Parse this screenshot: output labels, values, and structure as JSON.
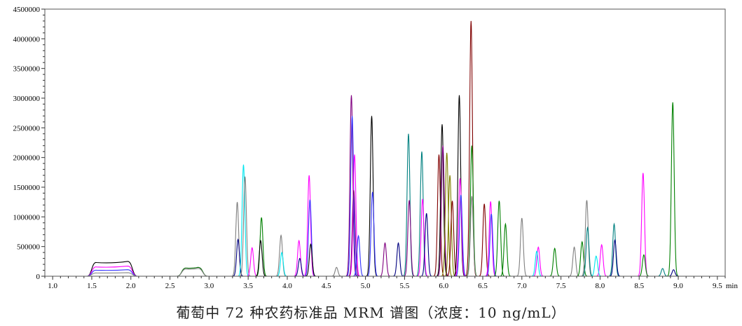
{
  "chart_data": {
    "type": "line",
    "title": "",
    "xlabel": "",
    "ylabel": "",
    "x_unit": "min",
    "xlim": [
      0.9,
      9.6
    ],
    "ylim": [
      0,
      4500000
    ],
    "x_ticks": [
      "1.0",
      "1.5",
      "2.0",
      "2.5",
      "3.0",
      "3.5",
      "4.0",
      "4.5",
      "5.0",
      "5.5",
      "6.0",
      "6.5",
      "7.0",
      "7.5",
      "8.0",
      "8.5",
      "9.0",
      "9.5"
    ],
    "y_ticks": [
      "0",
      "500000",
      "1000000",
      "1500000",
      "2000000",
      "2500000",
      "3000000",
      "3500000",
      "4000000",
      "4500000"
    ],
    "grid": false,
    "legend": "none",
    "plateaus": [
      {
        "start": 1.5,
        "end": 2.02,
        "color": "#000000",
        "height": 250000
      },
      {
        "start": 1.5,
        "end": 2.02,
        "color": "#ff00ff",
        "height": 170000
      },
      {
        "start": 1.5,
        "end": 2.02,
        "color": "#3333ff",
        "height": 110000
      },
      {
        "start": 1.5,
        "end": 2.02,
        "color": "#888888",
        "height": 60000
      },
      {
        "start": 2.65,
        "end": 2.92,
        "color": "#006600",
        "height": 150000
      },
      {
        "start": 2.65,
        "end": 2.92,
        "color": "#888888",
        "height": 130000
      }
    ],
    "peaks": [
      {
        "x": 3.36,
        "y": 1250000,
        "color": "#808080"
      },
      {
        "x": 3.37,
        "y": 620000,
        "color": "#000080"
      },
      {
        "x": 3.44,
        "y": 1880000,
        "color": "#00e5ee"
      },
      {
        "x": 3.46,
        "y": 1680000,
        "color": "#808080"
      },
      {
        "x": 3.55,
        "y": 480000,
        "color": "#ff00ff"
      },
      {
        "x": 3.67,
        "y": 990000,
        "color": "#008000"
      },
      {
        "x": 3.66,
        "y": 600000,
        "color": "#000000"
      },
      {
        "x": 3.92,
        "y": 690000,
        "color": "#808080"
      },
      {
        "x": 3.93,
        "y": 400000,
        "color": "#00e5ee"
      },
      {
        "x": 4.15,
        "y": 600000,
        "color": "#ff00ff"
      },
      {
        "x": 4.16,
        "y": 300000,
        "color": "#000080"
      },
      {
        "x": 4.28,
        "y": 1700000,
        "color": "#ff00ff"
      },
      {
        "x": 4.29,
        "y": 1290000,
        "color": "#3333ff"
      },
      {
        "x": 4.3,
        "y": 540000,
        "color": "#000000"
      },
      {
        "x": 4.63,
        "y": 150000,
        "color": "#808080"
      },
      {
        "x": 4.82,
        "y": 3050000,
        "color": "#800080"
      },
      {
        "x": 4.83,
        "y": 2700000,
        "color": "#3333ff"
      },
      {
        "x": 4.86,
        "y": 2050000,
        "color": "#ff00ff"
      },
      {
        "x": 4.85,
        "y": 1450000,
        "color": "#800080"
      },
      {
        "x": 4.91,
        "y": 680000,
        "color": "#3333ff"
      },
      {
        "x": 5.08,
        "y": 2700000,
        "color": "#000000"
      },
      {
        "x": 5.09,
        "y": 1420000,
        "color": "#3333ff"
      },
      {
        "x": 5.25,
        "y": 560000,
        "color": "#800080"
      },
      {
        "x": 5.42,
        "y": 560000,
        "color": "#000080"
      },
      {
        "x": 5.55,
        "y": 2400000,
        "color": "#008080"
      },
      {
        "x": 5.56,
        "y": 1280000,
        "color": "#800080"
      },
      {
        "x": 5.72,
        "y": 2100000,
        "color": "#008080"
      },
      {
        "x": 5.73,
        "y": 1300000,
        "color": "#ff00ff"
      },
      {
        "x": 5.78,
        "y": 1060000,
        "color": "#000080"
      },
      {
        "x": 5.94,
        "y": 2050000,
        "color": "#800000"
      },
      {
        "x": 5.98,
        "y": 2560000,
        "color": "#000000"
      },
      {
        "x": 5.99,
        "y": 2200000,
        "color": "#800080"
      },
      {
        "x": 6.04,
        "y": 2080000,
        "color": "#808000"
      },
      {
        "x": 6.08,
        "y": 1700000,
        "color": "#808000"
      },
      {
        "x": 6.11,
        "y": 1270000,
        "color": "#800000"
      },
      {
        "x": 6.2,
        "y": 3050000,
        "color": "#000000"
      },
      {
        "x": 6.21,
        "y": 1650000,
        "color": "#ff00ff"
      },
      {
        "x": 6.22,
        "y": 1370000,
        "color": "#3333ff"
      },
      {
        "x": 6.35,
        "y": 4300000,
        "color": "#800000"
      },
      {
        "x": 6.36,
        "y": 2200000,
        "color": "#008000"
      },
      {
        "x": 6.36,
        "y": 1350000,
        "color": "#808080"
      },
      {
        "x": 6.52,
        "y": 1220000,
        "color": "#800000"
      },
      {
        "x": 6.6,
        "y": 1260000,
        "color": "#ff00ff"
      },
      {
        "x": 6.61,
        "y": 1050000,
        "color": "#3333ff"
      },
      {
        "x": 6.71,
        "y": 1270000,
        "color": "#008000"
      },
      {
        "x": 6.79,
        "y": 880000,
        "color": "#008000"
      },
      {
        "x": 7.0,
        "y": 980000,
        "color": "#808080"
      },
      {
        "x": 7.21,
        "y": 490000,
        "color": "#ff00ff"
      },
      {
        "x": 7.19,
        "y": 420000,
        "color": "#00e5ee"
      },
      {
        "x": 7.42,
        "y": 470000,
        "color": "#008000"
      },
      {
        "x": 7.67,
        "y": 490000,
        "color": "#808080"
      },
      {
        "x": 7.77,
        "y": 580000,
        "color": "#008000"
      },
      {
        "x": 7.83,
        "y": 1280000,
        "color": "#808080"
      },
      {
        "x": 7.84,
        "y": 820000,
        "color": "#008080"
      },
      {
        "x": 8.02,
        "y": 530000,
        "color": "#ff00ff"
      },
      {
        "x": 7.95,
        "y": 340000,
        "color": "#00e5ee"
      },
      {
        "x": 8.18,
        "y": 880000,
        "color": "#008080"
      },
      {
        "x": 8.19,
        "y": 610000,
        "color": "#000080"
      },
      {
        "x": 8.55,
        "y": 1740000,
        "color": "#ff00ff"
      },
      {
        "x": 8.56,
        "y": 360000,
        "color": "#008000"
      },
      {
        "x": 8.8,
        "y": 130000,
        "color": "#008080"
      },
      {
        "x": 8.93,
        "y": 2930000,
        "color": "#008000"
      },
      {
        "x": 8.94,
        "y": 110000,
        "color": "#000080"
      }
    ]
  },
  "caption": "葡萄中 72 种农药标准品 MRM 谱图（浓度：10 ng/mL）"
}
